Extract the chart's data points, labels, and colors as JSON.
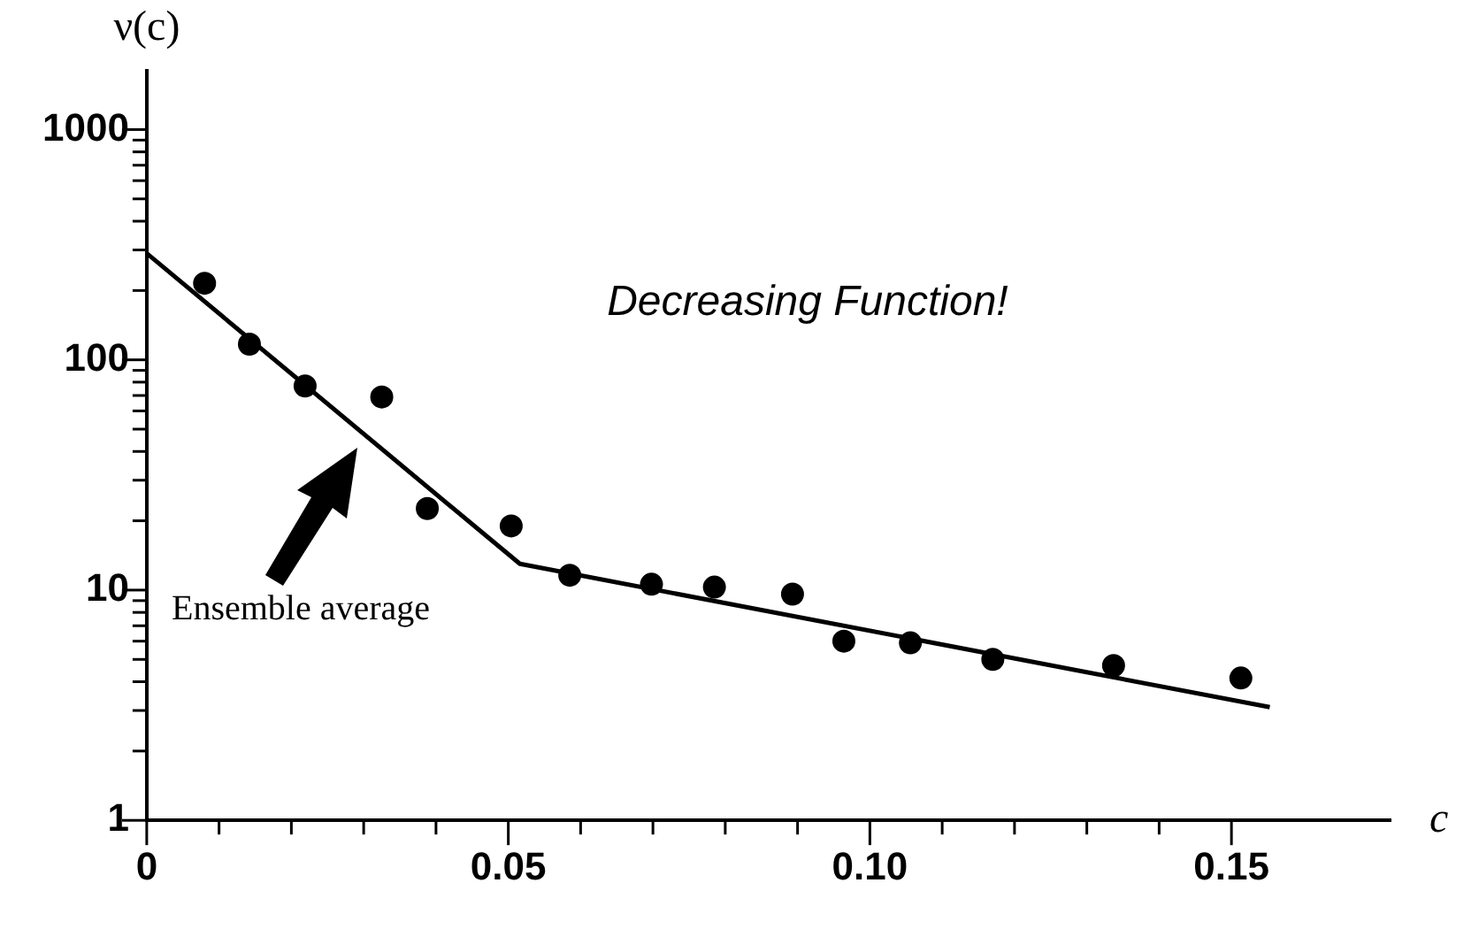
{
  "chart_data": {
    "type": "scatter",
    "xlabel": "c",
    "ylabel": "ν(c)",
    "log": "y",
    "grid": false,
    "legend": false,
    "marker": "circle",
    "xlim": [
      0,
      0.172
    ],
    "ylim": [
      1,
      1800
    ],
    "xticks": [
      0,
      {
        "value": 0.01,
        "label": null
      },
      {
        "value": 0.02,
        "label": null
      },
      {
        "value": 0.03,
        "label": null
      },
      {
        "value": 0.04,
        "label": null
      },
      {
        "value": 0.05,
        "label": "0.05"
      },
      {
        "value": 0.06,
        "label": null
      },
      {
        "value": 0.07,
        "label": null
      },
      {
        "value": 0.08,
        "label": null
      },
      {
        "value": 0.09,
        "label": null
      },
      {
        "value": 0.1,
        "label": "0.10"
      },
      {
        "value": 0.11,
        "label": null
      },
      {
        "value": 0.12,
        "label": null
      },
      {
        "value": 0.13,
        "label": null
      },
      {
        "value": 0.14,
        "label": null
      },
      {
        "value": 0.15,
        "label": "0.15"
      }
    ],
    "yticks": [
      1,
      {
        "value": 2,
        "label": null
      },
      {
        "value": 3,
        "label": null
      },
      {
        "value": 4,
        "label": null
      },
      {
        "value": 5,
        "label": null
      },
      {
        "value": 6,
        "label": null
      },
      {
        "value": 7,
        "label": null
      },
      {
        "value": 8,
        "label": null
      },
      {
        "value": 9,
        "label": null
      },
      10,
      {
        "value": 20,
        "label": null
      },
      {
        "value": 30,
        "label": null
      },
      {
        "value": 40,
        "label": null
      },
      {
        "value": 50,
        "label": null
      },
      {
        "value": 60,
        "label": null
      },
      {
        "value": 70,
        "label": null
      },
      {
        "value": 80,
        "label": null
      },
      {
        "value": 90,
        "label": null
      },
      100,
      {
        "value": 200,
        "label": null
      },
      {
        "value": 300,
        "label": null
      },
      {
        "value": 400,
        "label": null
      },
      {
        "value": 500,
        "label": null
      },
      {
        "value": 600,
        "label": null
      },
      {
        "value": 700,
        "label": null
      },
      {
        "value": 800,
        "label": null
      },
      {
        "value": 900,
        "label": null
      },
      1000
    ],
    "series": [
      {
        "color": "#000000",
        "x": [
          0.008,
          0.0142,
          0.0219,
          0.0325,
          0.0388,
          0.0504,
          0.0585,
          0.0698,
          0.0785,
          0.0893,
          0.0964,
          0.1056,
          0.117,
          0.1337,
          0.1513
        ],
        "values": [
          215,
          117,
          77,
          69,
          22.6,
          19,
          11.6,
          10.6,
          10.3,
          9.6,
          6.0,
          5.9,
          5.0,
          4.7,
          4.15
        ]
      },
      {
        "type": "line",
        "color": "#000000",
        "marker": "none",
        "x": [
          0,
          0.0516,
          0.1553
        ],
        "values": [
          290,
          13,
          3.1
        ]
      }
    ],
    "annotations": [
      "Decreasing Function!",
      "Ensemble average"
    ]
  }
}
